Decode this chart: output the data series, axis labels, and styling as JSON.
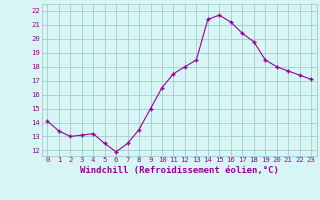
{
  "x": [
    0,
    1,
    2,
    3,
    4,
    5,
    6,
    7,
    8,
    9,
    10,
    11,
    12,
    13,
    14,
    15,
    16,
    17,
    18,
    19,
    20,
    21,
    22,
    23
  ],
  "y": [
    14.1,
    13.4,
    13.0,
    13.1,
    13.2,
    12.5,
    11.9,
    12.5,
    13.5,
    15.0,
    16.5,
    17.5,
    18.0,
    18.5,
    21.4,
    21.7,
    21.2,
    20.4,
    19.8,
    18.5,
    18.0,
    17.7,
    17.4,
    17.1
  ],
  "line_color": "#990099",
  "marker": "+",
  "markersize": 3,
  "markeredgewidth": 1.0,
  "linewidth": 0.8,
  "bg_color": "#d8f5f5",
  "grid_color": "#a0cccc",
  "tick_label_color": "#990099",
  "xlabel": "Windchill (Refroidissement éolien,°C)",
  "xlabel_color": "#990099",
  "xlabel_fontsize": 6.5,
  "ylabel_ticks": [
    12,
    13,
    14,
    15,
    16,
    17,
    18,
    19,
    20,
    21,
    22
  ],
  "ylim": [
    11.6,
    22.5
  ],
  "xlim": [
    -0.5,
    23.5
  ],
  "xticks": [
    0,
    1,
    2,
    3,
    4,
    5,
    6,
    7,
    8,
    9,
    10,
    11,
    12,
    13,
    14,
    15,
    16,
    17,
    18,
    19,
    20,
    21,
    22,
    23
  ],
  "tick_fontsize": 5.2
}
